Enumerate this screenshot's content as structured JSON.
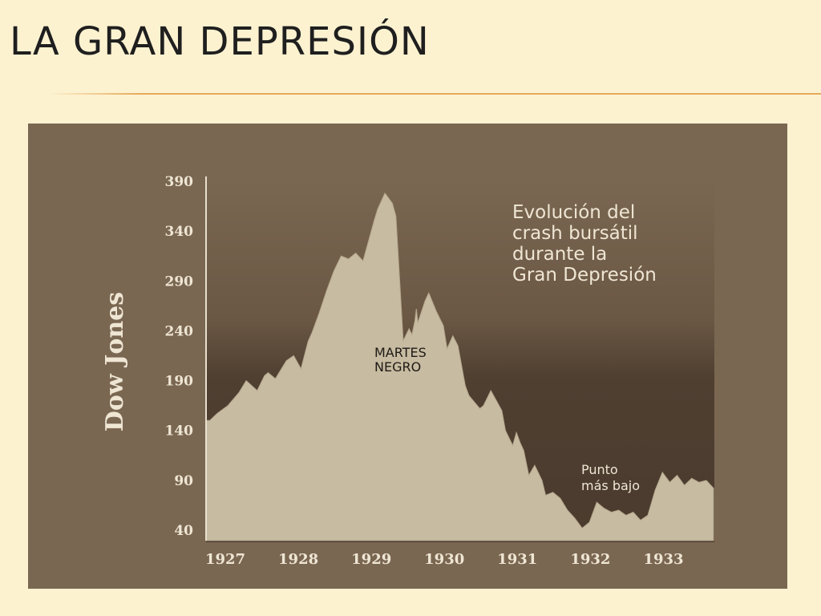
{
  "slide": {
    "title": "LA GRAN DEPRESIÓN"
  },
  "colors": {
    "background": "#fdf2d0",
    "panel": "#7a6752",
    "plot_dark": "#4f3f31",
    "area_fill": "#c7bba1",
    "text_light": "#efe6d4",
    "accent_rule": "#e5a959"
  },
  "chart_data": {
    "type": "area",
    "title_lines": [
      "Evolución del",
      "crash bursátil",
      "durante la",
      "Gran Depresión"
    ],
    "xlabel": "",
    "ylabel": "Dow Jones",
    "xlim": [
      1927,
      1933.95
    ],
    "ylim": [
      40,
      390
    ],
    "yticks": [
      390,
      340,
      290,
      240,
      190,
      140,
      90,
      40
    ],
    "xticks": [
      1927,
      1928,
      1929,
      1930,
      1931,
      1932,
      1933
    ],
    "grid": false,
    "annotations": [
      {
        "lines": [
          "MARTES",
          "NEGRO"
        ],
        "x": 1929.75,
        "y": 210
      },
      {
        "lines": [
          "Punto",
          "más bajo"
        ],
        "x": 1932.55,
        "y": 88
      }
    ],
    "series": [
      {
        "x": [
          1927.0,
          1927.05,
          1927.15,
          1927.3,
          1927.45,
          1927.55,
          1927.7,
          1927.8,
          1927.85,
          1927.95,
          1928.1,
          1928.2,
          1928.3,
          1928.4,
          1928.45,
          1928.55,
          1928.65,
          1928.75,
          1928.85,
          1928.95,
          1929.05,
          1929.15,
          1929.3,
          1929.35,
          1929.45,
          1929.55,
          1929.6,
          1929.7,
          1929.78,
          1929.82,
          1929.86,
          1929.88,
          1929.9,
          1930.0,
          1930.05,
          1930.15,
          1930.25,
          1930.3,
          1930.38,
          1930.45,
          1930.55,
          1930.6,
          1930.68,
          1930.75,
          1930.8,
          1930.9,
          1931.05,
          1931.1,
          1931.2,
          1931.25,
          1931.3,
          1931.35,
          1931.42,
          1931.5,
          1931.6,
          1931.65,
          1931.75,
          1931.85,
          1931.95,
          1932.05,
          1932.15,
          1932.25,
          1932.35,
          1932.45,
          1932.55,
          1932.65,
          1932.75,
          1932.85,
          1932.95,
          1933.05,
          1933.15,
          1933.25,
          1933.35,
          1933.45,
          1933.55,
          1933.65,
          1933.75,
          1933.85,
          1933.95
        ],
        "y": [
          150,
          150,
          157,
          165,
          178,
          190,
          180,
          195,
          198,
          192,
          210,
          215,
          202,
          230,
          238,
          258,
          280,
          300,
          315,
          312,
          318,
          310,
          350,
          362,
          378,
          368,
          355,
          230,
          242,
          236,
          250,
          262,
          248,
          270,
          278,
          260,
          245,
          222,
          235,
          225,
          185,
          175,
          168,
          162,
          165,
          180,
          160,
          140,
          125,
          138,
          128,
          120,
          95,
          105,
          90,
          75,
          78,
          72,
          60,
          52,
          42,
          48,
          68,
          62,
          58,
          60,
          55,
          58,
          50,
          55,
          80,
          98,
          88,
          95,
          85,
          92,
          88,
          90,
          82
        ]
      }
    ]
  }
}
